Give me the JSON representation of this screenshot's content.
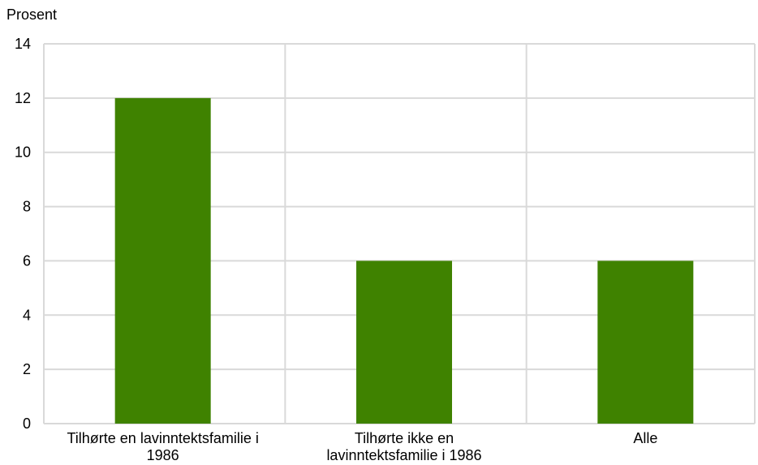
{
  "chart_data": {
    "type": "bar",
    "ylabel": "Prosent",
    "categories": [
      [
        "Tilhørte en lavinntektsfamilie i",
        "1986"
      ],
      [
        "Tilhørte ikke en",
        "lavinntektsfamilie i 1986"
      ],
      [
        "Alle"
      ]
    ],
    "values": [
      12,
      6,
      6
    ],
    "ylim": [
      0,
      14
    ],
    "yticks": [
      0,
      2,
      4,
      6,
      8,
      10,
      12,
      14
    ],
    "grid": true,
    "bar_color": "#3f8200",
    "grid_color": "#d9d9d9"
  }
}
